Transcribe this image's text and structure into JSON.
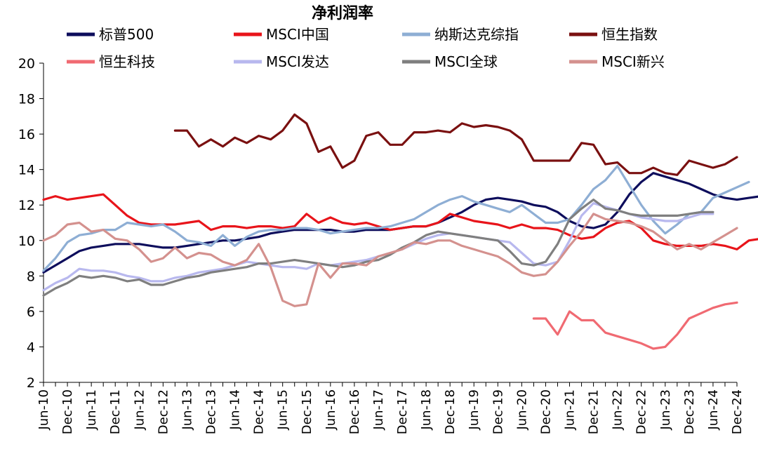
{
  "chart_data": {
    "type": "line",
    "title": "净利润率",
    "ylim": [
      2,
      20
    ],
    "yticks": [
      2,
      4,
      6,
      8,
      10,
      12,
      14,
      16,
      18,
      20
    ],
    "x_start": "2010-06",
    "x_step_months": 3,
    "x_labels": [
      "Jun-10",
      "Dec-10",
      "Jun-11",
      "Dec-11",
      "Jun-12",
      "Dec-12",
      "Jun-13",
      "Dec-13",
      "Jun-14",
      "Dec-14",
      "Jun-15",
      "Dec-15",
      "Jun-16",
      "Dec-16",
      "Jun-17",
      "Dec-17",
      "Jun-18",
      "Dec-18",
      "Jun-19",
      "Dec-19",
      "Jun-20",
      "Dec-20",
      "Jun-21",
      "Dec-21",
      "Jun-22",
      "Dec-22",
      "Jun-23",
      "Dec-23",
      "Jun-24",
      "Dec-24"
    ],
    "grid": false,
    "legend_position": "top",
    "series": [
      {
        "name": "标普500",
        "color": "#0d0d5c",
        "start": "2010-06",
        "values": [
          8.2,
          8.6,
          9.0,
          9.4,
          9.6,
          9.7,
          9.8,
          9.8,
          9.8,
          9.7,
          9.6,
          9.6,
          9.7,
          9.8,
          9.9,
          10.0,
          10.0,
          10.1,
          10.2,
          10.4,
          10.5,
          10.6,
          10.6,
          10.6,
          10.6,
          10.5,
          10.5,
          10.6,
          10.6,
          10.6,
          10.7,
          10.8,
          10.8,
          11.0,
          11.3,
          11.6,
          12.0,
          12.3,
          12.4,
          12.3,
          12.2,
          12.0,
          11.9,
          11.6,
          11.1,
          10.8,
          10.7,
          10.9,
          11.6,
          12.6,
          13.3,
          13.8,
          13.6,
          13.4,
          13.2,
          12.9,
          12.6,
          12.4,
          12.3,
          12.4,
          12.5,
          12.6,
          12.7
        ]
      },
      {
        "name": "MSCI中国",
        "color": "#e8141a",
        "start": "2010-06",
        "values": [
          12.3,
          12.5,
          12.3,
          12.4,
          12.5,
          12.6,
          12.0,
          11.4,
          11.0,
          10.9,
          10.9,
          10.9,
          11.0,
          11.1,
          10.6,
          10.8,
          10.8,
          10.7,
          10.8,
          10.8,
          10.7,
          10.8,
          11.5,
          11.0,
          11.3,
          11.0,
          10.9,
          11.0,
          10.8,
          10.6,
          10.7,
          10.8,
          10.8,
          11.0,
          11.5,
          11.3,
          11.1,
          11.0,
          10.9,
          10.7,
          10.9,
          10.7,
          10.7,
          10.6,
          10.3,
          10.1,
          10.2,
          10.7,
          11.0,
          11.1,
          10.7,
          10.0,
          9.8,
          9.7,
          9.7,
          9.7,
          9.8,
          9.7,
          9.5,
          10.0,
          10.1,
          10.3,
          10.8,
          11.3
        ]
      },
      {
        "name": "纳斯达克综指",
        "color": "#8eaed4",
        "start": "2010-06",
        "values": [
          8.3,
          9.0,
          9.9,
          10.3,
          10.4,
          10.6,
          10.6,
          11.0,
          10.9,
          10.8,
          10.9,
          10.5,
          10.0,
          9.9,
          9.7,
          10.3,
          9.7,
          10.2,
          10.5,
          10.6,
          10.6,
          10.7,
          10.7,
          10.6,
          10.4,
          10.5,
          10.6,
          10.7,
          10.7,
          10.8,
          11.0,
          11.2,
          11.6,
          12.0,
          12.3,
          12.5,
          12.2,
          12.0,
          11.8,
          11.6,
          12.0,
          11.5,
          11.0,
          11.0,
          11.2,
          12.0,
          12.9,
          13.4,
          14.2,
          13.1,
          12.0,
          11.1,
          10.4,
          10.9,
          11.5,
          11.6,
          12.4,
          12.7,
          13.0,
          13.3
        ]
      },
      {
        "name": "恒生指数",
        "color": "#7a1010",
        "start": "2013-03",
        "values": [
          16.2,
          16.2,
          15.3,
          15.7,
          15.3,
          15.8,
          15.5,
          15.9,
          15.7,
          16.2,
          17.1,
          16.6,
          15.0,
          15.3,
          14.1,
          14.5,
          15.9,
          16.1,
          15.4,
          15.4,
          16.1,
          16.1,
          16.2,
          16.1,
          16.6,
          16.4,
          16.5,
          16.4,
          16.2,
          15.7,
          14.5,
          14.5,
          14.5,
          14.5,
          15.5,
          15.4,
          14.3,
          14.4,
          13.8,
          13.8,
          14.1,
          13.8,
          13.7,
          14.5,
          14.3,
          14.1,
          14.3,
          14.7
        ]
      },
      {
        "name": "恒生科技",
        "color": "#f06a72",
        "start": "2020-09",
        "values": [
          5.6,
          5.6,
          4.7,
          6.0,
          5.5,
          5.5,
          4.8,
          4.6,
          4.4,
          4.2,
          3.9,
          4.0,
          4.7,
          5.6,
          5.9,
          6.2,
          6.4,
          6.5
        ]
      },
      {
        "name": "MSCI发达",
        "color": "#b8b8ee",
        "start": "2010-06",
        "values": [
          7.2,
          7.6,
          7.9,
          8.4,
          8.3,
          8.3,
          8.2,
          8.0,
          7.9,
          7.7,
          7.7,
          7.9,
          8.0,
          8.2,
          8.3,
          8.4,
          8.6,
          8.8,
          8.7,
          8.6,
          8.5,
          8.5,
          8.4,
          8.7,
          8.6,
          8.7,
          8.8,
          8.9,
          9.1,
          9.3,
          9.5,
          9.8,
          10.1,
          10.3,
          10.4,
          10.3,
          10.2,
          10.1,
          10.0,
          9.9,
          9.3,
          8.7,
          8.6,
          8.8,
          10.0,
          11.4,
          12.1,
          11.9,
          11.7,
          11.5,
          11.3,
          11.2,
          11.1,
          11.1,
          11.3,
          11.5,
          11.5
        ]
      },
      {
        "name": "MSCI全球",
        "color": "#7f7f7f",
        "start": "2010-06",
        "values": [
          6.9,
          7.3,
          7.6,
          8.0,
          7.9,
          8.0,
          7.9,
          7.7,
          7.8,
          7.5,
          7.5,
          7.7,
          7.9,
          8.0,
          8.2,
          8.3,
          8.4,
          8.5,
          8.7,
          8.7,
          8.8,
          8.9,
          8.8,
          8.7,
          8.6,
          8.5,
          8.6,
          8.8,
          8.9,
          9.2,
          9.6,
          9.9,
          10.3,
          10.5,
          10.4,
          10.3,
          10.2,
          10.1,
          10.0,
          9.4,
          8.7,
          8.6,
          8.8,
          9.8,
          11.2,
          11.8,
          12.3,
          11.8,
          11.7,
          11.5,
          11.4,
          11.4,
          11.4,
          11.4,
          11.5,
          11.6,
          11.6
        ]
      },
      {
        "name": "MSCI新兴",
        "color": "#d4918e",
        "start": "2010-06",
        "values": [
          10.0,
          10.3,
          10.9,
          11.0,
          10.5,
          10.6,
          10.1,
          10.0,
          9.5,
          8.8,
          9.0,
          9.6,
          9.0,
          9.3,
          9.2,
          8.8,
          8.6,
          8.9,
          9.8,
          8.5,
          6.6,
          6.3,
          6.4,
          8.7,
          7.9,
          8.7,
          8.7,
          8.6,
          9.1,
          9.3,
          9.5,
          9.9,
          9.8,
          10.0,
          10.0,
          9.7,
          9.5,
          9.3,
          9.1,
          8.7,
          8.2,
          8.0,
          8.1,
          8.8,
          9.7,
          10.5,
          11.5,
          11.2,
          11.1,
          11.0,
          10.8,
          10.5,
          10.0,
          9.5,
          9.8,
          9.5,
          9.9,
          10.3,
          10.7
        ]
      }
    ]
  }
}
